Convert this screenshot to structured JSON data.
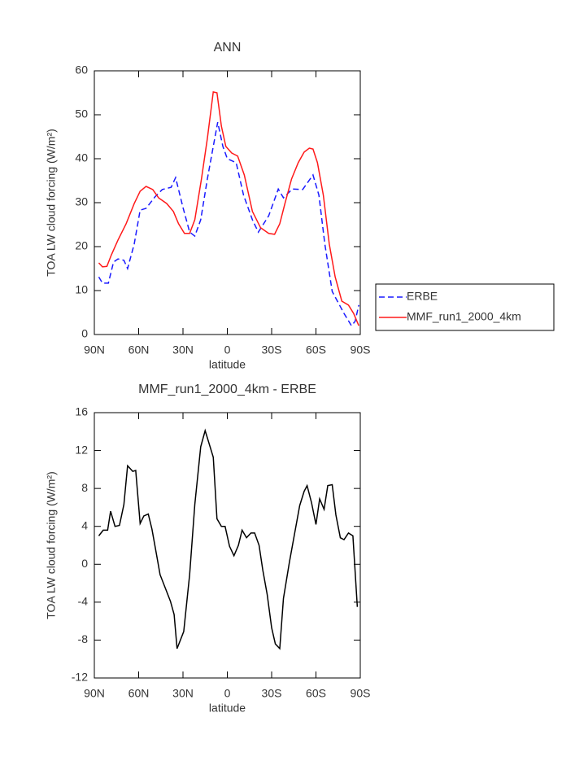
{
  "chart_data": [
    {
      "type": "line",
      "title": "ANN",
      "xlabel": "latitude",
      "ylabel": "TOA LW cloud forcing (W/m²)",
      "xlim": [
        90,
        -90
      ],
      "xticks": [
        {
          "value": 90,
          "label": "90N"
        },
        {
          "value": 60,
          "label": "60N"
        },
        {
          "value": 30,
          "label": "30N"
        },
        0,
        {
          "value": -30,
          "label": "30S"
        },
        {
          "value": -60,
          "label": "60S"
        },
        {
          "value": -90,
          "label": "90S"
        }
      ],
      "ylim": [
        0,
        60
      ],
      "yticks": [
        0,
        10,
        20,
        30,
        40,
        50,
        60
      ],
      "legend": "right",
      "series": [
        {
          "name": "ERBE",
          "color": "#1a1aff",
          "dashed": true,
          "x": [
            87,
            84.5,
            80.5,
            77,
            74,
            70,
            67.5,
            63,
            59,
            55,
            49,
            44,
            38,
            35,
            30,
            25.5,
            22,
            18,
            13.5,
            9.5,
            6.5,
            3,
            0,
            -6,
            -11,
            -17,
            -21,
            -28,
            -34.5,
            -38,
            -44,
            -51,
            -58,
            -62,
            -66,
            -71,
            -74.5,
            -79,
            -84,
            -86.5,
            -89
          ],
          "values": [
            13.1,
            11.7,
            11.7,
            16.5,
            17.2,
            16.9,
            15,
            20.6,
            28.3,
            28.7,
            31.3,
            33,
            33.5,
            35.7,
            28.9,
            23.3,
            22.4,
            26.1,
            35.4,
            42.8,
            48.3,
            42.8,
            40,
            39.1,
            31.7,
            26.1,
            23.3,
            27,
            33.1,
            31.1,
            33.1,
            33,
            36.3,
            31.7,
            20.6,
            9.8,
            7.6,
            4.8,
            2,
            3,
            6.7
          ]
        },
        {
          "name": "MMF_run1_2000_4km",
          "color": "#ff1a1a",
          "dashed": false,
          "x": [
            87,
            84.5,
            81.5,
            78.5,
            74,
            68.5,
            63,
            59,
            55,
            50.5,
            46.5,
            41,
            36.5,
            33,
            29,
            25.5,
            22,
            17.5,
            13.5,
            9.5,
            7,
            4,
            1,
            -3,
            -7,
            -11.5,
            -17,
            -22.5,
            -28,
            -32,
            -35.5,
            -39,
            -43.5,
            -48,
            -52,
            -55.5,
            -58,
            -61,
            -65,
            -69,
            -73,
            -77.5,
            -82,
            -85.5,
            -89
          ],
          "values": [
            16.3,
            15.4,
            15.5,
            18.1,
            21.5,
            25.2,
            29.8,
            32.6,
            33.7,
            33,
            31.1,
            29.8,
            28,
            25.2,
            23,
            23,
            26.1,
            35.4,
            44.6,
            55.2,
            55,
            47.4,
            42.8,
            41.3,
            40.6,
            36.3,
            28,
            24.3,
            23,
            22.8,
            25.2,
            29.8,
            35.4,
            39.1,
            41.5,
            42.4,
            42.2,
            39.1,
            31.7,
            20.6,
            13.1,
            7.6,
            6.7,
            4.8,
            2
          ]
        }
      ]
    },
    {
      "type": "line",
      "title": "MMF_run1_2000_4km - ERBE",
      "xlabel": "latitude",
      "ylabel": "TOA LW cloud forcing (W/m²)",
      "xlim": [
        90,
        -90
      ],
      "xticks": [
        {
          "value": 90,
          "label": "90N"
        },
        {
          "value": 60,
          "label": "60N"
        },
        {
          "value": 30,
          "label": "30N"
        },
        0,
        {
          "value": -30,
          "label": "30S"
        },
        {
          "value": -60,
          "label": "60S"
        },
        {
          "value": -90,
          "label": "90S"
        }
      ],
      "ylim": [
        -12,
        16
      ],
      "yticks": [
        -12,
        -8,
        -4,
        0,
        4,
        8,
        12,
        16
      ],
      "series": [
        {
          "color": "#000000",
          "dashed": false,
          "x": [
            87,
            84,
            81,
            79,
            76,
            73,
            70,
            67.5,
            64,
            62,
            59,
            56.5,
            53.5,
            51,
            48,
            45.5,
            42,
            38.5,
            36,
            34,
            29.5,
            25.5,
            22,
            18,
            15,
            9.5,
            7,
            4,
            1.5,
            -1.5,
            -4.5,
            -7.5,
            -10,
            -13,
            -16,
            -18.5,
            -21.5,
            -24,
            -27,
            -30,
            -32.5,
            -35.5,
            -38,
            -42,
            -45.5,
            -49,
            -52,
            -54,
            -57,
            -60,
            -62.5,
            -65.5,
            -68,
            -71,
            -73.5,
            -76.5,
            -79,
            -82,
            -85,
            -88
          ],
          "values": [
            3,
            3.6,
            3.6,
            5.6,
            4,
            4.1,
            6.3,
            10.4,
            9.8,
            9.9,
            4.3,
            5.1,
            5.3,
            3.7,
            1.1,
            -1.1,
            -2.5,
            -3.9,
            -5.3,
            -8.9,
            -7.1,
            -1.1,
            6.3,
            12.4,
            14.1,
            11.3,
            4.8,
            4,
            4,
            1.9,
            0.9,
            2,
            3.6,
            2.8,
            3.3,
            3.3,
            2,
            -0.6,
            -3.2,
            -6.7,
            -8.4,
            -8.9,
            -3.6,
            0.2,
            3.2,
            6.2,
            7.7,
            8.3,
            6.5,
            4.2,
            6.9,
            5.8,
            8.3,
            8.4,
            5.2,
            2.8,
            2.6,
            3.3,
            3,
            -4.5
          ]
        }
      ]
    }
  ]
}
